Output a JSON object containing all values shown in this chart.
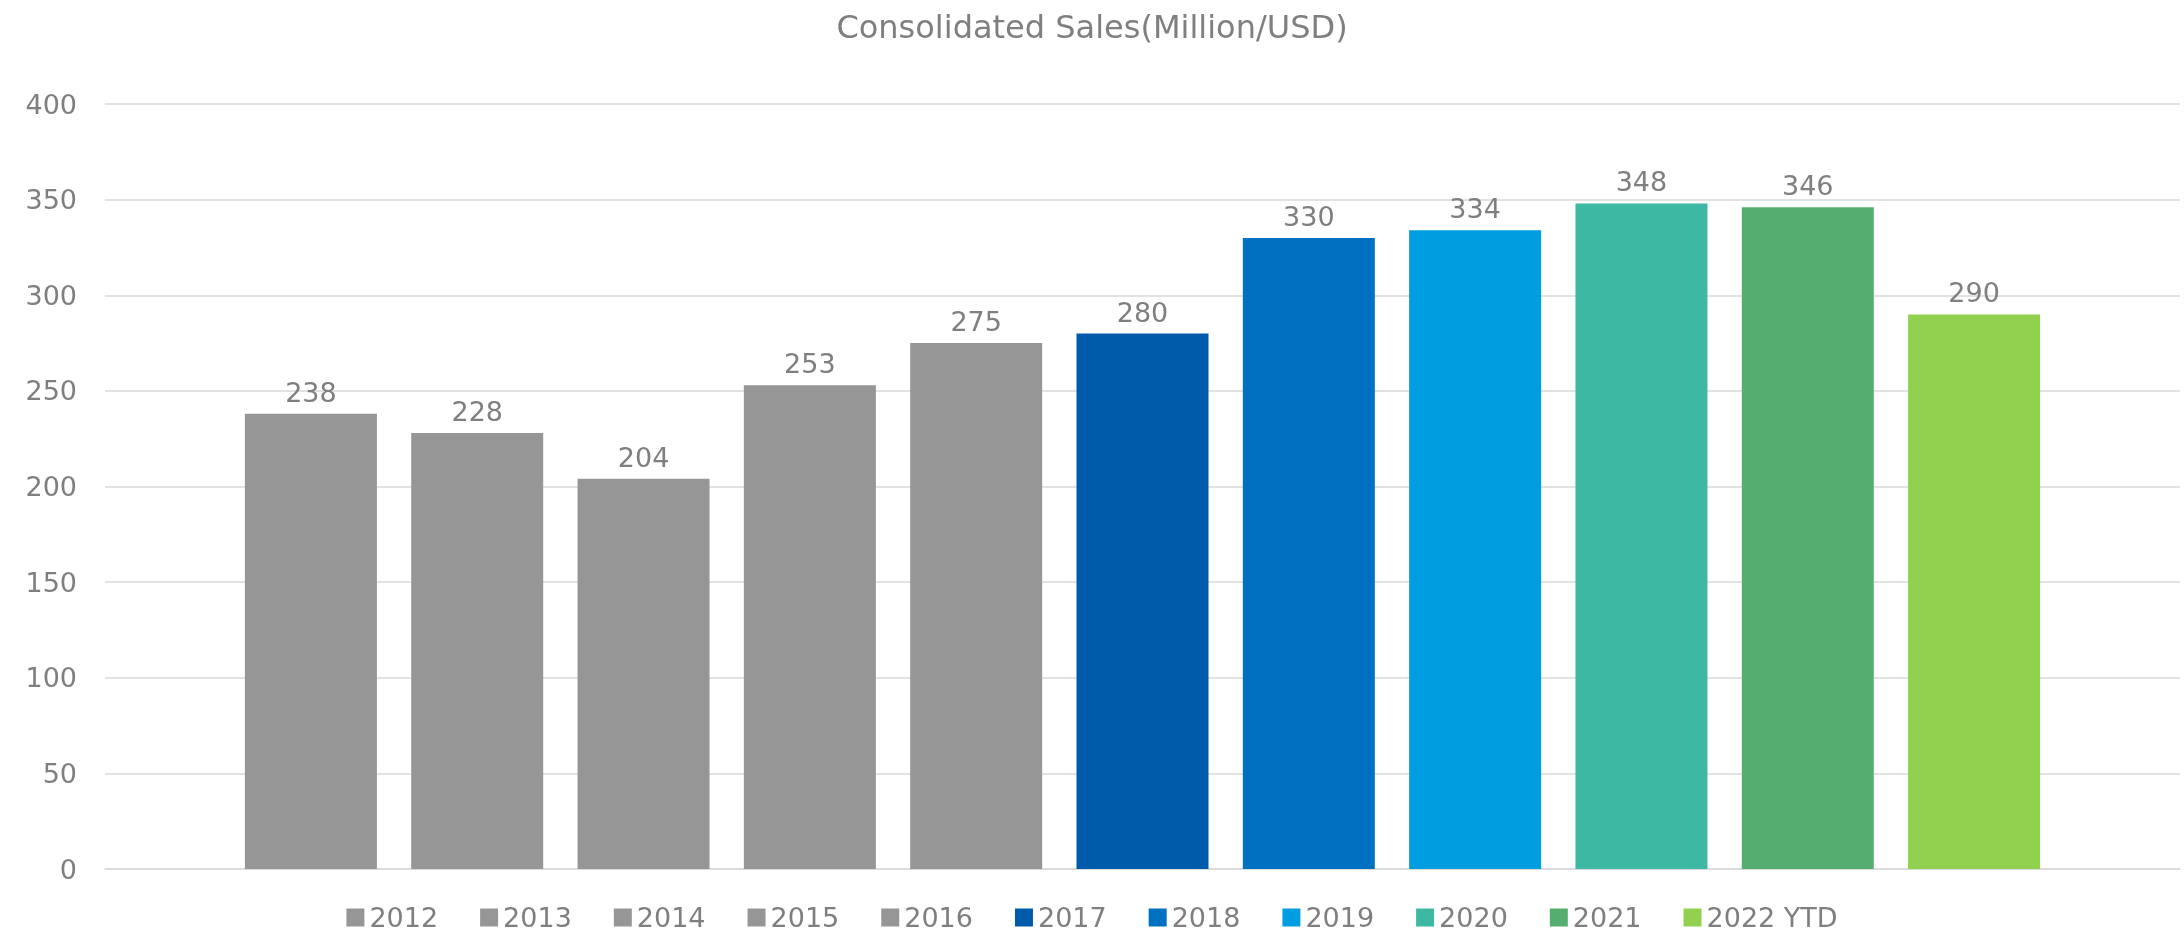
{
  "chart_data": {
    "type": "bar",
    "title": "Consolidated Sales(Million/USD)",
    "categories": [
      null
    ],
    "series": [
      {
        "name": "2012",
        "color": "#969696",
        "values": [
          238
        ]
      },
      {
        "name": "2013",
        "color": "#969696",
        "values": [
          228
        ]
      },
      {
        "name": "2014",
        "color": "#969696",
        "values": [
          204
        ]
      },
      {
        "name": "2015",
        "color": "#969696",
        "values": [
          253
        ]
      },
      {
        "name": "2016",
        "color": "#969696",
        "values": [
          275
        ]
      },
      {
        "name": "2017",
        "color": "#005bab",
        "values": [
          280
        ]
      },
      {
        "name": "2018",
        "color": "#0071c1",
        "values": [
          330
        ]
      },
      {
        "name": "2019",
        "color": "#009ee0",
        "values": [
          334
        ]
      },
      {
        "name": "2020",
        "color": "#3db8a3",
        "values": [
          348
        ]
      },
      {
        "name": "2021",
        "color": "#55ae6f",
        "values": [
          346
        ]
      },
      {
        "name": "2022 YTD",
        "color": "#92d050",
        "values": [
          290
        ]
      }
    ],
    "ylim": [
      0,
      400
    ],
    "yticks": [
      0,
      50,
      100,
      150,
      200,
      250,
      300,
      350,
      400
    ],
    "grid": "y",
    "legend": "bottom",
    "data_labels": true
  }
}
